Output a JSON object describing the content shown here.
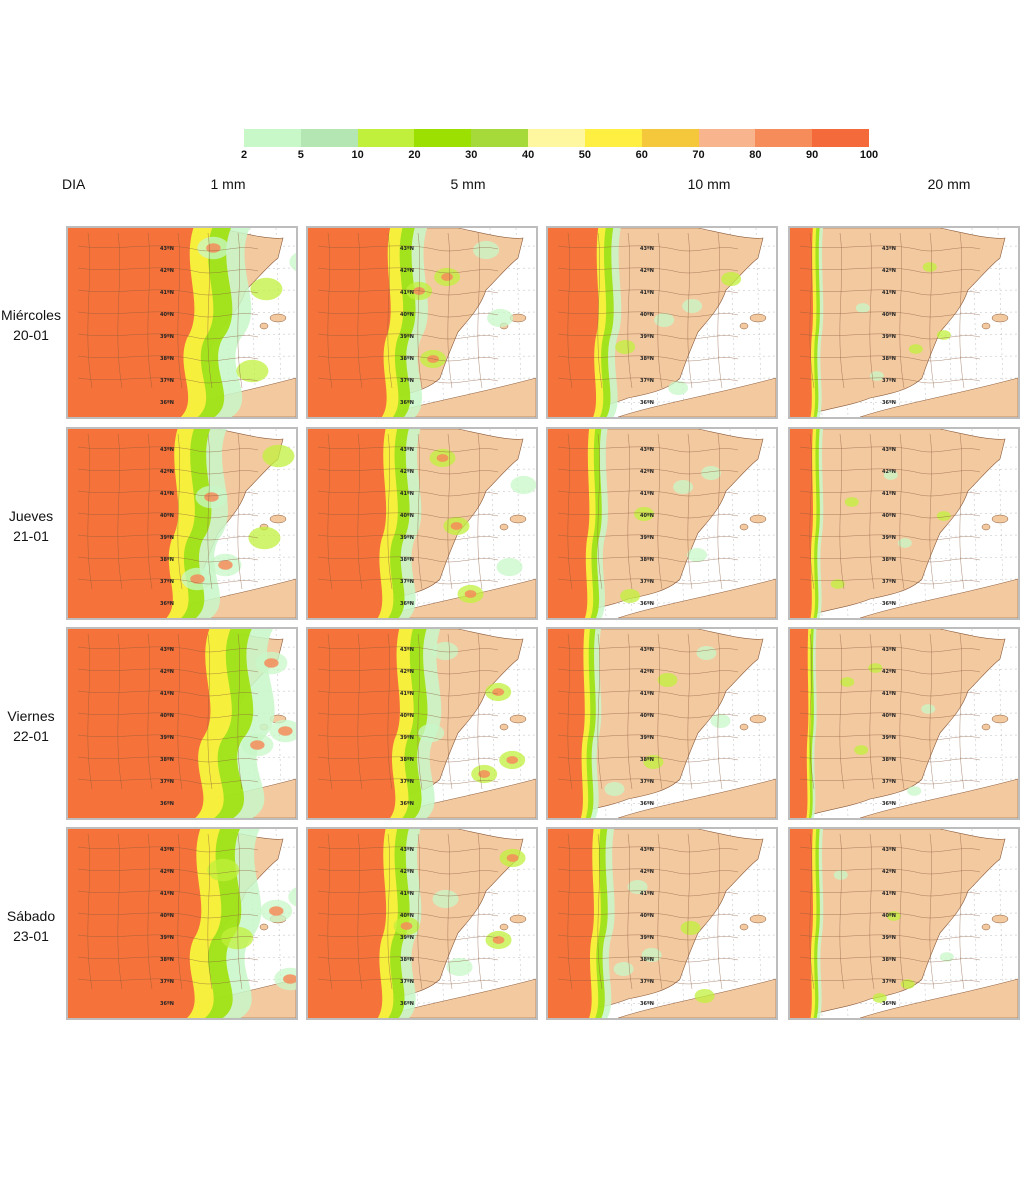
{
  "legend": {
    "colors": [
      "#c8f7c8",
      "#b4e6b4",
      "#c0f03c",
      "#9be000",
      "#a6d93a",
      "#fff7a0",
      "#ffef40",
      "#f5c83c",
      "#f8b48c",
      "#f58c5a",
      "#f46a3a"
    ],
    "ticks": [
      "2",
      "5",
      "10",
      "20",
      "30",
      "40",
      "50",
      "60",
      "70",
      "80",
      "90",
      "100"
    ]
  },
  "headers": {
    "dia": "DIA",
    "columns": [
      "1 mm",
      "5 mm",
      "10 mm",
      "20 mm"
    ]
  },
  "rows": [
    {
      "day": "Miércoles",
      "date": "20-01"
    },
    {
      "day": "Jueves",
      "date": "21-01"
    },
    {
      "day": "Viernes",
      "date": "22-01"
    },
    {
      "day": "Sábado",
      "date": "23-01"
    }
  ],
  "map_style": {
    "land_color": "#f3c9a0",
    "sea_color": "#ffffff",
    "border_color": "#8a5a3a",
    "grid_color": "#c8c8c8"
  },
  "latitude_labels": [
    "43ºN",
    "42ºN",
    "41ºN",
    "40ºN",
    "39ºN",
    "38ºN",
    "37ºN",
    "36ºN"
  ]
}
